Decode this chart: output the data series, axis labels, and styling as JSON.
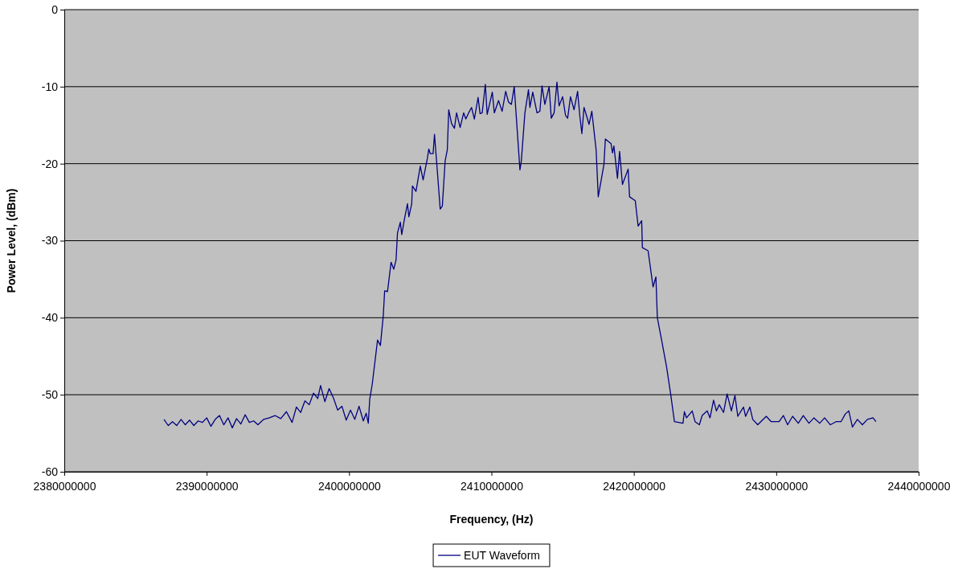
{
  "chart_data": {
    "type": "line",
    "xlabel": "Frequency, (Hz)",
    "ylabel": "Power Level, (dBm)",
    "xlim": [
      2380000000,
      2440000000
    ],
    "xticks": [
      2380000000,
      2390000000,
      2400000000,
      2410000000,
      2420000000,
      2430000000,
      2440000000
    ],
    "ylim": [
      -60,
      0
    ],
    "yticks": [
      -60,
      -50,
      -40,
      -30,
      -20,
      -10,
      0
    ],
    "grid": "y",
    "legend": "bottom",
    "marker": "none",
    "line_style": "solid",
    "x": [
      2387000000,
      2387300000,
      2387600000,
      2387900000,
      2388200000,
      2388500000,
      2388800000,
      2389100000,
      2389400000,
      2389700000,
      2390000000,
      2390300000,
      2390600000,
      2390900000,
      2391200000,
      2391500000,
      2391800000,
      2392100000,
      2392400000,
      2392700000,
      2393000000,
      2393300000,
      2393600000,
      2394000000,
      2394400000,
      2394800000,
      2395200000,
      2395600000,
      2396000000,
      2396300000,
      2396600000,
      2396900000,
      2397200000,
      2397500000,
      2397800000,
      2398000000,
      2398300000,
      2398600000,
      2398900000,
      2399200000,
      2399500000,
      2399800000,
      2400100000,
      2400400000,
      2400700000,
      2401000000,
      2401200000,
      2401350000,
      2401450000,
      2401630000,
      2402000000,
      2402200000,
      2402400000,
      2402500000,
      2402700000,
      2402950000,
      2403140000,
      2403300000,
      2403400000,
      2403600000,
      2403700000,
      2403900000,
      2404100000,
      2404200000,
      2404400000,
      2404450000,
      2404700000,
      2405000000,
      2405200000,
      2405500000,
      2405600000,
      2405700000,
      2405900000,
      2406000000,
      2406200000,
      2406400000,
      2406550000,
      2406750000,
      2406900000,
      2407000000,
      2407200000,
      2407400000,
      2407550000,
      2407800000,
      2408050000,
      2408200000,
      2408400000,
      2408600000,
      2408800000,
      2409060000,
      2409200000,
      2409350000,
      2409570000,
      2409700000,
      2410060000,
      2410200000,
      2410500000,
      2410750000,
      2411000000,
      2411200000,
      2411400000,
      2411600000,
      2411800000,
      2412000000,
      2412100000,
      2412350000,
      2412600000,
      2412700000,
      2412900000,
      2413200000,
      2413400000,
      2413550000,
      2413750000,
      2414050000,
      2414200000,
      2414400000,
      2414600000,
      2414750000,
      2415000000,
      2415200000,
      2415350000,
      2415550000,
      2415800000,
      2416050000,
      2416200000,
      2416350000,
      2416500000,
      2416700000,
      2416850000,
      2417050000,
      2417350000,
      2417500000,
      2417900000,
      2418000000,
      2418400000,
      2418500000,
      2418600000,
      2418850000,
      2419000000,
      2419200000,
      2419600000,
      2419700000,
      2420100000,
      2420300000,
      2420550000,
      2420600000,
      2421000000,
      2421350000,
      2421550000,
      2421650000,
      2421950000,
      2422300000,
      2422600000,
      2422850000,
      2423450000,
      2423550000,
      2423700000,
      2424100000,
      2424300000,
      2424600000,
      2424800000,
      2425150000,
      2425350000,
      2425600000,
      2425800000,
      2426000000,
      2426300000,
      2426550000,
      2426850000,
      2427100000,
      2427300000,
      2427700000,
      2427850000,
      2428150000,
      2428350000,
      2428700000,
      2429300000,
      2429650000,
      2430200000,
      2430500000,
      2430800000,
      2431150000,
      2431550000,
      2431900000,
      2432300000,
      2432650000,
      2433050000,
      2433400000,
      2433800000,
      2434200000,
      2434550000,
      2434850000,
      2435100000,
      2435350000,
      2435700000,
      2436050000,
      2436400000,
      2436800000,
      2437000000
    ],
    "series": [
      {
        "name": "EUT Waveform",
        "color": "#000080",
        "values": [
          -53.2,
          -54.0,
          -53.5,
          -54.0,
          -53.2,
          -53.9,
          -53.3,
          -54.0,
          -53.4,
          -53.6,
          -53.0,
          -54.1,
          -53.2,
          -52.7,
          -53.9,
          -53.0,
          -54.3,
          -53.1,
          -53.8,
          -52.6,
          -53.6,
          -53.4,
          -53.9,
          -53.2,
          -53.0,
          -52.7,
          -53.1,
          -52.2,
          -53.6,
          -51.6,
          -52.3,
          -50.8,
          -51.3,
          -49.8,
          -50.5,
          -48.8,
          -50.9,
          -49.2,
          -50.4,
          -52.0,
          -51.5,
          -53.3,
          -52.0,
          -53.2,
          -51.5,
          -53.4,
          -52.4,
          -53.7,
          -50.6,
          -48.6,
          -42.9,
          -43.6,
          -39.8,
          -36.5,
          -36.6,
          -32.8,
          -33.7,
          -32.5,
          -29.0,
          -27.6,
          -29.2,
          -27.1,
          -25.2,
          -26.9,
          -25.2,
          -22.9,
          -23.6,
          -20.3,
          -22.1,
          -19.3,
          -18.1,
          -18.7,
          -18.7,
          -16.2,
          -21.0,
          -25.9,
          -25.5,
          -19.6,
          -18.2,
          -13.0,
          -14.8,
          -15.4,
          -13.4,
          -15.3,
          -13.4,
          -14.2,
          -13.4,
          -12.7,
          -14.2,
          -11.4,
          -13.5,
          -13.4,
          -9.7,
          -13.6,
          -10.7,
          -13.4,
          -11.8,
          -13.2,
          -10.6,
          -12.0,
          -12.3,
          -10.0,
          -15.4,
          -20.8,
          -19.6,
          -13.4,
          -10.4,
          -12.7,
          -10.7,
          -13.4,
          -13.2,
          -9.9,
          -12.3,
          -10.0,
          -14.1,
          -13.4,
          -9.4,
          -12.5,
          -11.3,
          -13.7,
          -14.1,
          -11.3,
          -13.0,
          -10.6,
          -13.7,
          -16.1,
          -12.7,
          -13.9,
          -14.9,
          -13.2,
          -18.2,
          -24.3,
          -20.1,
          -16.8,
          -17.4,
          -18.6,
          -17.7,
          -21.9,
          -18.4,
          -22.7,
          -20.7,
          -24.3,
          -24.8,
          -28.1,
          -27.4,
          -30.9,
          -31.3,
          -36.0,
          -34.7,
          -40.0,
          -42.9,
          -46.4,
          -50.1,
          -53.5,
          -53.7,
          -52.2,
          -53.0,
          -52.1,
          -53.5,
          -53.9,
          -52.7,
          -52.1,
          -53.0,
          -50.7,
          -52.1,
          -51.3,
          -52.3,
          -49.9,
          -52.1,
          -50.1,
          -52.8,
          -51.6,
          -52.8,
          -51.6,
          -53.2,
          -53.9,
          -52.8,
          -53.5,
          -53.5,
          -52.7,
          -53.9,
          -52.8,
          -53.7,
          -52.7,
          -53.7,
          -53.0,
          -53.7,
          -53.0,
          -53.9,
          -53.5,
          -53.5,
          -52.5,
          -52.1,
          -54.2,
          -53.2,
          -53.9,
          -53.2,
          -53.0,
          -53.5
        ]
      }
    ]
  }
}
